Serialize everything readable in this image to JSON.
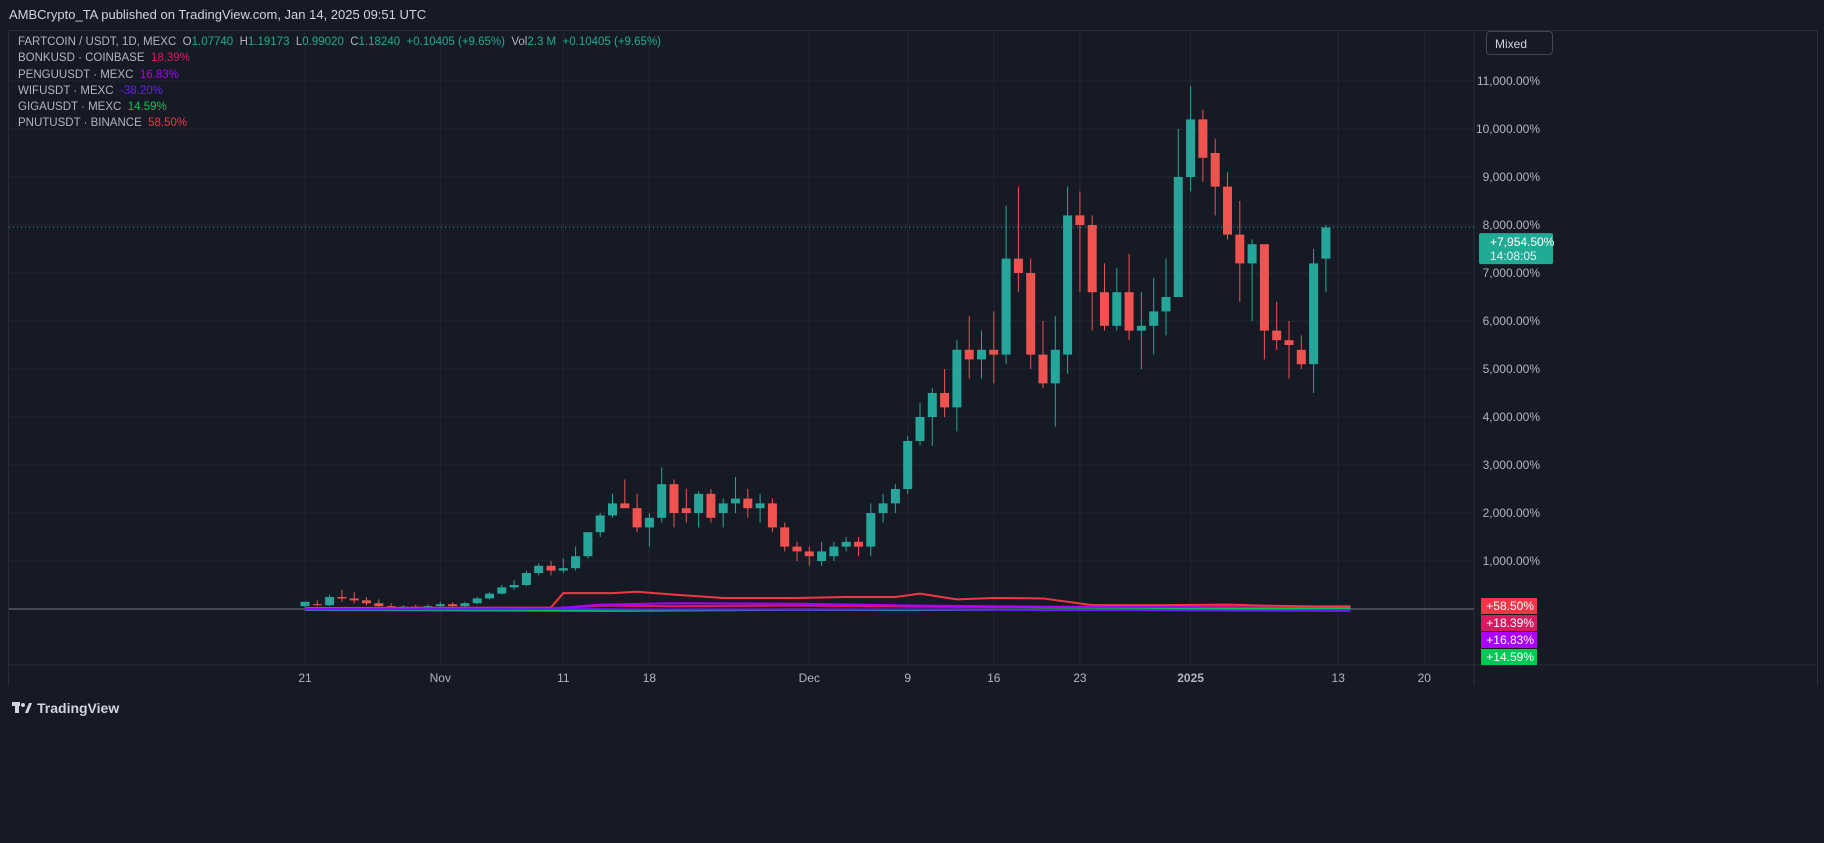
{
  "header": {
    "published": "AMBCrypto_TA published on TradingView.com, Jan 14, 2025 09:51 UTC"
  },
  "legend": {
    "main": {
      "symbol": "FARTCOIN / USDT, 1D, MEXC",
      "o_label": "O",
      "o": "1.07740",
      "h_label": "H",
      "h": "1.19173",
      "l_label": "L",
      "l": "0.99020",
      "c_label": "C",
      "c": "1.18240",
      "change": "+0.10405 (+9.65%)",
      "vol_label": "Vol",
      "vol": "2.3 M",
      "vol_change": "+0.10405 (+9.65%)"
    },
    "compare": [
      {
        "symbol": "BONKUSD · COINBASE",
        "value": "18.39%",
        "color": "#d81b60"
      },
      {
        "symbol": "PENGUUSDT · MEXC",
        "value": "16.83%",
        "color": "#aa00ff"
      },
      {
        "symbol": "WIFUSDT · MEXC",
        "value": "-38.20%",
        "color": "#651fff"
      },
      {
        "symbol": "GIGAUSDT · MEXC",
        "value": "14.59%",
        "color": "#00c853"
      },
      {
        "symbol": "PNUTUSDT · BINANCE",
        "value": "58.50%",
        "color": "#f23645"
      }
    ]
  },
  "scale_mode": "Mixed",
  "last_price": {
    "value": "+7,954.50%",
    "countdown": "14:08:05"
  },
  "badges": [
    {
      "text": "+58.50%",
      "color": "#f23645"
    },
    {
      "text": "+18.39%",
      "color": "#d81b60"
    },
    {
      "text": "+16.83%",
      "color": "#aa00ff"
    },
    {
      "text": "+14.59%",
      "color": "#00c853"
    }
  ],
  "footer": {
    "brand": "TradingView"
  },
  "chart_data": {
    "type": "candlestick",
    "ylabel": "% change",
    "y_ticks": [
      1000,
      2000,
      3000,
      4000,
      5000,
      6000,
      7000,
      8000,
      9000,
      10000,
      11000
    ],
    "y_tick_labels": [
      "1,000.00%",
      "2,000.00%",
      "3,000.00%",
      "4,000.00%",
      "5,000.00%",
      "6,000.00%",
      "7,000.00%",
      "8,000.00%",
      "9,000.00%",
      "10,000.00%",
      "11,000.00%"
    ],
    "x_ticks": [
      {
        "index": 0,
        "label": "21"
      },
      {
        "index": 11,
        "label": "Nov"
      },
      {
        "index": 21,
        "label": "11"
      },
      {
        "index": 28,
        "label": "18"
      },
      {
        "index": 41,
        "label": "Dec"
      },
      {
        "index": 49,
        "label": "9"
      },
      {
        "index": 56,
        "label": "16"
      },
      {
        "index": 63,
        "label": "23"
      },
      {
        "index": 72,
        "label": "2025"
      },
      {
        "index": 84,
        "label": "13"
      },
      {
        "index": 91,
        "label": "20"
      }
    ],
    "candles": [
      [
        60,
        150,
        30,
        150
      ],
      [
        100,
        180,
        60,
        80
      ],
      [
        80,
        300,
        60,
        250
      ],
      [
        250,
        400,
        150,
        220
      ],
      [
        220,
        350,
        120,
        180
      ],
      [
        180,
        250,
        80,
        120
      ],
      [
        120,
        200,
        40,
        60
      ],
      [
        60,
        120,
        20,
        40
      ],
      [
        40,
        80,
        10,
        50
      ],
      [
        50,
        90,
        20,
        40
      ],
      [
        40,
        100,
        20,
        60
      ],
      [
        60,
        150,
        40,
        100
      ],
      [
        100,
        140,
        40,
        60
      ],
      [
        60,
        150,
        40,
        120
      ],
      [
        120,
        250,
        100,
        220
      ],
      [
        220,
        350,
        200,
        320
      ],
      [
        320,
        500,
        300,
        450
      ],
      [
        450,
        600,
        400,
        500
      ],
      [
        500,
        800,
        480,
        750
      ],
      [
        750,
        950,
        700,
        900
      ],
      [
        900,
        1000,
        700,
        800
      ],
      [
        800,
        1050,
        750,
        850
      ],
      [
        850,
        1300,
        800,
        1100
      ],
      [
        1100,
        1600,
        1050,
        1600
      ],
      [
        1600,
        2000,
        1500,
        1950
      ],
      [
        1950,
        2400,
        1900,
        2200
      ],
      [
        2200,
        2700,
        2100,
        2100
      ],
      [
        2100,
        2400,
        1600,
        1700
      ],
      [
        1700,
        2000,
        1300,
        1900
      ],
      [
        1900,
        2950,
        1800,
        2600
      ],
      [
        2600,
        2700,
        1700,
        2000
      ],
      [
        2100,
        2500,
        1800,
        2000
      ],
      [
        2000,
        2450,
        1700,
        2400
      ],
      [
        2400,
        2500,
        1800,
        1900
      ],
      [
        2000,
        2300,
        1700,
        2200
      ],
      [
        2200,
        2750,
        2000,
        2300
      ],
      [
        2300,
        2500,
        1900,
        2100
      ],
      [
        2100,
        2400,
        1800,
        2200
      ],
      [
        2200,
        2300,
        1600,
        1700
      ],
      [
        1700,
        1800,
        1200,
        1300
      ],
      [
        1300,
        1400,
        1000,
        1200
      ],
      [
        1200,
        1300,
        900,
        1100
      ],
      [
        1000,
        1400,
        900,
        1200
      ],
      [
        1100,
        1400,
        1000,
        1300
      ],
      [
        1300,
        1500,
        1200,
        1400
      ],
      [
        1400,
        1500,
        1100,
        1300
      ],
      [
        1300,
        2200,
        1100,
        2000
      ],
      [
        2000,
        2400,
        1800,
        2200
      ],
      [
        2200,
        2600,
        2000,
        2500
      ],
      [
        2500,
        3600,
        2400,
        3500
      ],
      [
        3500,
        4300,
        3400,
        4000
      ],
      [
        4000,
        4600,
        3400,
        4500
      ],
      [
        4500,
        5000,
        4000,
        4200
      ],
      [
        4200,
        5600,
        3700,
        5400
      ],
      [
        5400,
        6100,
        4800,
        5200
      ],
      [
        5200,
        5800,
        4800,
        5400
      ],
      [
        5400,
        6200,
        4700,
        5300
      ],
      [
        5300,
        8400,
        5100,
        7300
      ],
      [
        7300,
        8800,
        6600,
        7000
      ],
      [
        7000,
        7300,
        5000,
        5300
      ],
      [
        5300,
        6000,
        4600,
        4700
      ],
      [
        4700,
        6100,
        3800,
        5400
      ],
      [
        5300,
        8800,
        4900,
        8200
      ],
      [
        8200,
        8700,
        6600,
        8000
      ],
      [
        8000,
        8200,
        5800,
        6600
      ],
      [
        6600,
        7200,
        5800,
        5900
      ],
      [
        5900,
        7100,
        5800,
        6600
      ],
      [
        6600,
        7400,
        5600,
        5800
      ],
      [
        5800,
        6600,
        5000,
        5900
      ],
      [
        5900,
        6900,
        5300,
        6200
      ],
      [
        6200,
        7300,
        5700,
        6500
      ],
      [
        6500,
        10000,
        6500,
        9000
      ],
      [
        9000,
        10900,
        8700,
        10200
      ],
      [
        10200,
        10400,
        8900,
        9400
      ],
      [
        9500,
        9800,
        8200,
        8800
      ],
      [
        8800,
        9100,
        7700,
        7800
      ],
      [
        7800,
        8500,
        6400,
        7200
      ],
      [
        7200,
        7700,
        6000,
        7600
      ],
      [
        7600,
        7600,
        5200,
        5800
      ],
      [
        5800,
        6400,
        5400,
        5600
      ],
      [
        5600,
        6000,
        4800,
        5500
      ],
      [
        5400,
        5700,
        5000,
        5100
      ],
      [
        5100,
        7500,
        4500,
        7200
      ],
      [
        7300,
        8000,
        6600,
        7950
      ]
    ],
    "series": [
      {
        "name": "PNUTUSDT",
        "color": "#f23645",
        "points": [
          [
            0,
            20
          ],
          [
            20,
            30
          ],
          [
            21,
            330
          ],
          [
            25,
            330
          ],
          [
            27,
            360
          ],
          [
            30,
            300
          ],
          [
            34,
            230
          ],
          [
            40,
            230
          ],
          [
            44,
            250
          ],
          [
            48,
            250
          ],
          [
            50,
            320
          ],
          [
            53,
            200
          ],
          [
            56,
            230
          ],
          [
            60,
            220
          ],
          [
            64,
            80
          ],
          [
            70,
            80
          ],
          [
            75,
            90
          ],
          [
            78,
            70
          ],
          [
            82,
            55
          ],
          [
            85,
            58
          ]
        ]
      },
      {
        "name": "BONKUSD",
        "color": "#d81b60",
        "points": [
          [
            0,
            0
          ],
          [
            20,
            10
          ],
          [
            24,
            70
          ],
          [
            30,
            60
          ],
          [
            40,
            70
          ],
          [
            50,
            50
          ],
          [
            60,
            40
          ],
          [
            70,
            40
          ],
          [
            75,
            45
          ],
          [
            80,
            20
          ],
          [
            85,
            18
          ]
        ]
      },
      {
        "name": "PENGUUSDT",
        "color": "#aa00ff",
        "points": [
          [
            0,
            0
          ],
          [
            20,
            10
          ],
          [
            24,
            90
          ],
          [
            30,
            120
          ],
          [
            40,
            110
          ],
          [
            50,
            70
          ],
          [
            60,
            50
          ],
          [
            70,
            40
          ],
          [
            80,
            20
          ],
          [
            85,
            17
          ]
        ]
      },
      {
        "name": "GIGAUSDT",
        "color": "#00c853",
        "points": [
          [
            0,
            -20
          ],
          [
            15,
            -30
          ],
          [
            25,
            -40
          ],
          [
            37,
            -20
          ],
          [
            50,
            -20
          ],
          [
            60,
            -10
          ],
          [
            70,
            0
          ],
          [
            85,
            15
          ]
        ]
      },
      {
        "name": "WIFUSDT",
        "color": "#651fff",
        "points": [
          [
            0,
            -10
          ],
          [
            20,
            0
          ],
          [
            30,
            -10
          ],
          [
            40,
            -15
          ],
          [
            50,
            -10
          ],
          [
            60,
            -20
          ],
          [
            70,
            -25
          ],
          [
            80,
            -35
          ],
          [
            85,
            -38
          ]
        ]
      }
    ]
  }
}
